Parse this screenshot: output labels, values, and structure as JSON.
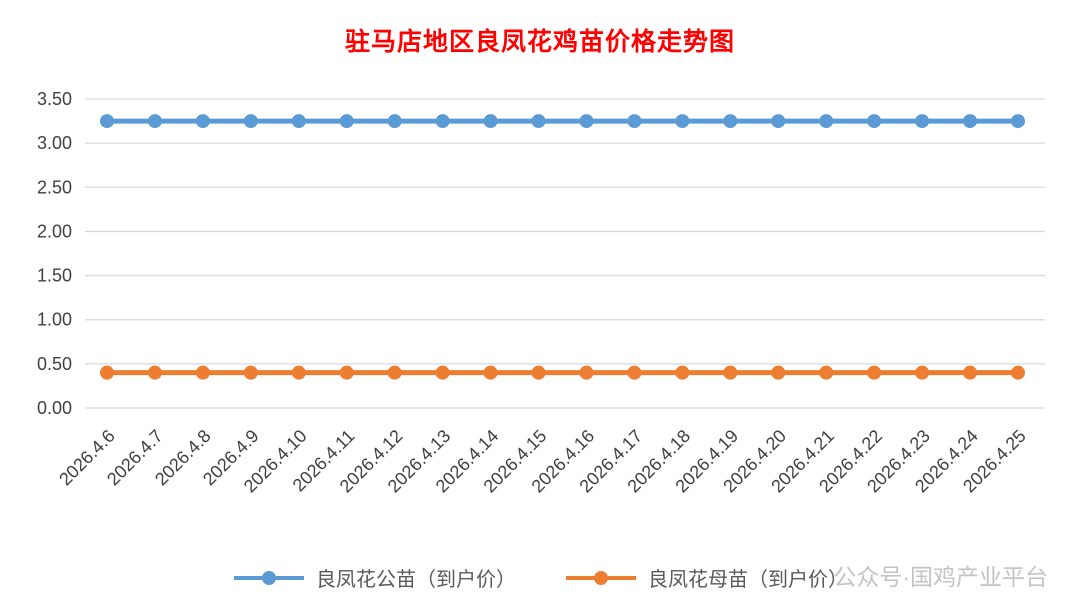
{
  "chart_data": {
    "type": "line",
    "title": "驻马店地区良凤花鸡苗价格走势图",
    "categories": [
      "2026.4.6",
      "2026.4.7",
      "2026.4.8",
      "2026.4.9",
      "2026.4.10",
      "2026.4.11",
      "2026.4.12",
      "2026.4.13",
      "2026.4.14",
      "2026.4.15",
      "2026.4.16",
      "2026.4.17",
      "2026.4.18",
      "2026.4.19",
      "2026.4.20",
      "2026.4.21",
      "2026.4.22",
      "2026.4.23",
      "2026.4.24",
      "2026.4.25"
    ],
    "series": [
      {
        "name": "良凤花公苗（到户价）",
        "color": "#5B9BD5",
        "values": [
          3.25,
          3.25,
          3.25,
          3.25,
          3.25,
          3.25,
          3.25,
          3.25,
          3.25,
          3.25,
          3.25,
          3.25,
          3.25,
          3.25,
          3.25,
          3.25,
          3.25,
          3.25,
          3.25,
          3.25
        ]
      },
      {
        "name": "良凤花母苗（到户价）",
        "color": "#ED7D31",
        "values": [
          0.4,
          0.4,
          0.4,
          0.4,
          0.4,
          0.4,
          0.4,
          0.4,
          0.4,
          0.4,
          0.4,
          0.4,
          0.4,
          0.4,
          0.4,
          0.4,
          0.4,
          0.4,
          0.4,
          0.4
        ]
      }
    ],
    "ylim": [
      0,
      3.5
    ],
    "ytick_step": 0.5,
    "ytick_labels": [
      "0.00",
      "0.50",
      "1.00",
      "1.50",
      "2.00",
      "2.50",
      "3.00",
      "3.50"
    ],
    "xlabel": "",
    "ylabel": "",
    "grid": true,
    "legend_position": "bottom"
  },
  "watermark": {
    "text": "公众号·国鸡产业平台"
  },
  "colors": {
    "title": "#FF0000",
    "axis_text": "#404040",
    "gridline": "#D9D9D9",
    "background": "#FFFFFF"
  }
}
